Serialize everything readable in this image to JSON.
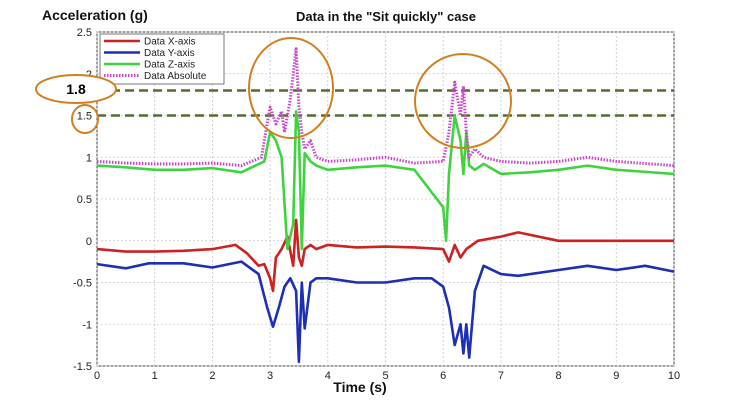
{
  "chart_data": {
    "type": "line",
    "title": "Data in the \"Sit quickly\" case",
    "xlabel": "Time (s)",
    "ylabel": "Acceleration (g)",
    "xlim": [
      0,
      10
    ],
    "ylim": [
      -1.5,
      2.5
    ],
    "xticks": [
      "0",
      "1",
      "2",
      "3",
      "4",
      "5",
      "6",
      "7",
      "8",
      "9",
      "10"
    ],
    "yticks": [
      "-1.5",
      "-1",
      "-0.5",
      "0",
      "0.5",
      "1",
      "1.5",
      "2",
      "2.5"
    ],
    "grid": true,
    "legend_position": "top-left",
    "series": [
      {
        "name": "Data X-axis",
        "color": "#cc2222",
        "style": "solid",
        "points": [
          [
            0,
            -0.1
          ],
          [
            0.5,
            -0.13
          ],
          [
            1,
            -0.13
          ],
          [
            1.5,
            -0.12
          ],
          [
            2,
            -0.1
          ],
          [
            2.4,
            -0.05
          ],
          [
            2.6,
            -0.15
          ],
          [
            2.8,
            -0.3
          ],
          [
            2.9,
            -0.28
          ],
          [
            3.0,
            -0.45
          ],
          [
            3.05,
            -0.6
          ],
          [
            3.1,
            -0.2
          ],
          [
            3.2,
            -0.1
          ],
          [
            3.3,
            0.05
          ],
          [
            3.4,
            -0.3
          ],
          [
            3.45,
            0.25
          ],
          [
            3.5,
            -0.2
          ],
          [
            3.55,
            -0.3
          ],
          [
            3.6,
            -0.1
          ],
          [
            3.7,
            -0.05
          ],
          [
            3.8,
            -0.1
          ],
          [
            4,
            -0.05
          ],
          [
            4.5,
            -0.08
          ],
          [
            5,
            -0.07
          ],
          [
            5.5,
            -0.08
          ],
          [
            6,
            -0.1
          ],
          [
            6.1,
            -0.25
          ],
          [
            6.2,
            -0.05
          ],
          [
            6.3,
            -0.2
          ],
          [
            6.4,
            -0.1
          ],
          [
            6.5,
            -0.05
          ],
          [
            6.6,
            0.0
          ],
          [
            7,
            0.05
          ],
          [
            7.3,
            0.1
          ],
          [
            8,
            0.0
          ],
          [
            9,
            0.0
          ],
          [
            10,
            0.0
          ]
        ]
      },
      {
        "name": "Data Y-axis",
        "color": "#1c2fb5",
        "style": "solid",
        "points": [
          [
            0,
            -0.28
          ],
          [
            0.5,
            -0.33
          ],
          [
            0.9,
            -0.27
          ],
          [
            1.5,
            -0.27
          ],
          [
            2,
            -0.32
          ],
          [
            2.5,
            -0.25
          ],
          [
            2.8,
            -0.4
          ],
          [
            2.95,
            -0.8
          ],
          [
            3.05,
            -1.03
          ],
          [
            3.15,
            -0.8
          ],
          [
            3.25,
            -0.55
          ],
          [
            3.35,
            -0.45
          ],
          [
            3.45,
            -0.6
          ],
          [
            3.5,
            -1.45
          ],
          [
            3.55,
            -0.5
          ],
          [
            3.6,
            -1.05
          ],
          [
            3.7,
            -0.5
          ],
          [
            3.8,
            -0.45
          ],
          [
            4,
            -0.45
          ],
          [
            4.5,
            -0.5
          ],
          [
            5,
            -0.5
          ],
          [
            5.5,
            -0.45
          ],
          [
            5.8,
            -0.45
          ],
          [
            6.0,
            -0.55
          ],
          [
            6.1,
            -0.8
          ],
          [
            6.2,
            -1.25
          ],
          [
            6.3,
            -1.0
          ],
          [
            6.35,
            -1.35
          ],
          [
            6.4,
            -1.0
          ],
          [
            6.45,
            -1.4
          ],
          [
            6.55,
            -0.6
          ],
          [
            6.7,
            -0.3
          ],
          [
            7,
            -0.4
          ],
          [
            7.3,
            -0.42
          ],
          [
            8,
            -0.35
          ],
          [
            8.5,
            -0.3
          ],
          [
            9,
            -0.35
          ],
          [
            9.5,
            -0.3
          ],
          [
            10,
            -0.37
          ]
        ]
      },
      {
        "name": "Data Z-axis",
        "color": "#3fd43f",
        "style": "solid",
        "points": [
          [
            0,
            0.9
          ],
          [
            0.5,
            0.88
          ],
          [
            1,
            0.85
          ],
          [
            1.5,
            0.85
          ],
          [
            2,
            0.87
          ],
          [
            2.5,
            0.82
          ],
          [
            2.9,
            0.95
          ],
          [
            3.0,
            1.3
          ],
          [
            3.1,
            1.2
          ],
          [
            3.2,
            1.0
          ],
          [
            3.3,
            -0.1
          ],
          [
            3.4,
            0.2
          ],
          [
            3.45,
            1.55
          ],
          [
            3.5,
            1.3
          ],
          [
            3.55,
            -0.1
          ],
          [
            3.6,
            1.05
          ],
          [
            3.7,
            0.95
          ],
          [
            3.8,
            0.9
          ],
          [
            4,
            0.85
          ],
          [
            4.5,
            0.88
          ],
          [
            5,
            0.9
          ],
          [
            5.5,
            0.85
          ],
          [
            6.0,
            0.4
          ],
          [
            6.05,
            0.0
          ],
          [
            6.1,
            0.8
          ],
          [
            6.2,
            1.5
          ],
          [
            6.3,
            1.2
          ],
          [
            6.35,
            0.8
          ],
          [
            6.4,
            1.3
          ],
          [
            6.45,
            0.9
          ],
          [
            6.55,
            0.85
          ],
          [
            6.7,
            0.92
          ],
          [
            7,
            0.8
          ],
          [
            7.5,
            0.82
          ],
          [
            8,
            0.85
          ],
          [
            8.5,
            0.9
          ],
          [
            9,
            0.85
          ],
          [
            10,
            0.8
          ]
        ]
      },
      {
        "name": "Data Absolute",
        "color": "#cc44cc",
        "style": "dotted",
        "points": [
          [
            0,
            0.95
          ],
          [
            0.5,
            0.93
          ],
          [
            1,
            0.92
          ],
          [
            1.5,
            0.92
          ],
          [
            2,
            0.93
          ],
          [
            2.5,
            0.9
          ],
          [
            2.85,
            1.0
          ],
          [
            3.0,
            1.6
          ],
          [
            3.1,
            1.4
          ],
          [
            3.2,
            1.55
          ],
          [
            3.25,
            1.3
          ],
          [
            3.35,
            1.7
          ],
          [
            3.45,
            2.3
          ],
          [
            3.5,
            1.6
          ],
          [
            3.55,
            1.3
          ],
          [
            3.6,
            1.1
          ],
          [
            3.7,
            1.2
          ],
          [
            3.8,
            1.0
          ],
          [
            4,
            0.95
          ],
          [
            4.5,
            0.97
          ],
          [
            5,
            1.0
          ],
          [
            5.5,
            0.93
          ],
          [
            6.0,
            0.95
          ],
          [
            6.1,
            1.3
          ],
          [
            6.2,
            1.9
          ],
          [
            6.3,
            1.5
          ],
          [
            6.35,
            1.85
          ],
          [
            6.4,
            1.3
          ],
          [
            6.45,
            1.0
          ],
          [
            6.55,
            1.1
          ],
          [
            6.7,
            1.0
          ],
          [
            7,
            0.95
          ],
          [
            7.5,
            0.93
          ],
          [
            8,
            0.95
          ],
          [
            8.5,
            1.0
          ],
          [
            9,
            0.95
          ],
          [
            10,
            0.9
          ]
        ]
      }
    ],
    "reference_lines": [
      {
        "y": 1.8,
        "color": "#556b2f",
        "style": "dashed"
      },
      {
        "y": 1.5,
        "color": "#556b2f",
        "style": "dashed"
      }
    ],
    "annotations": {
      "label_18": "1.8",
      "label_15": "1.5"
    }
  }
}
